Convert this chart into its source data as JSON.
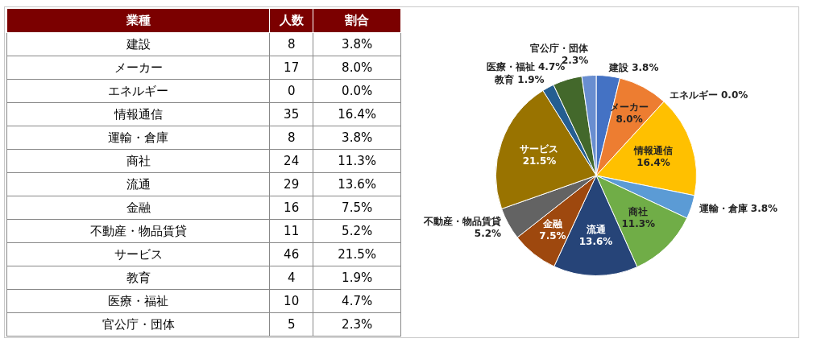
{
  "chart_data": [
    {
      "type": "other",
      "xlabel": "業種",
      "categories": [
        "建設",
        "メーカー",
        "エネルギー",
        "情報通信",
        "運輸・倉庫",
        "商社",
        "流通",
        "金融",
        "不動産・物品賃貸",
        "サービス",
        "教育",
        "医療・福祉",
        "官公庁・団体"
      ],
      "data_labels": true,
      "series": [
        {
          "name": "人数",
          "values": [
            8,
            17,
            0,
            35,
            8,
            24,
            29,
            16,
            11,
            46,
            4,
            10,
            5
          ]
        },
        {
          "name": "割合",
          "values": [
            3.8,
            8.0,
            0.0,
            16.4,
            3.8,
            11.3,
            13.6,
            7.5,
            5.2,
            21.5,
            1.9,
            4.7,
            2.3
          ],
          "value_labels": [
            "3.8%",
            "8.0%",
            "0.0%",
            "16.4%",
            "3.8%",
            "11.3%",
            "13.6%",
            "7.5%",
            "5.2%",
            "21.5%",
            "1.9%",
            "4.7%",
            "2.3%"
          ]
        }
      ]
    },
    {
      "type": "pie",
      "categories": [
        "建設",
        "メーカー",
        "エネルギー",
        "情報通信",
        "運輸・倉庫",
        "商社",
        "流通",
        "金融",
        "不動産・物品賃貸",
        "サービス",
        "教育",
        "医療・福祉",
        "官公庁・団体"
      ],
      "values": [
        3.8,
        8.0,
        0.0,
        16.4,
        3.8,
        11.3,
        13.6,
        7.5,
        5.2,
        21.5,
        1.9,
        4.7,
        2.3
      ],
      "value_labels": [
        "3.8%",
        "8.0%",
        "0.0%",
        "16.4%",
        "3.8%",
        "11.3%",
        "13.6%",
        "7.5%",
        "5.2%",
        "21.5%",
        "1.9%",
        "4.7%",
        "2.3%"
      ],
      "colors": [
        "#4472c4",
        "#ed7d31",
        "#a5a5a5",
        "#ffc000",
        "#5b9bd5",
        "#70ad47",
        "#264478",
        "#9e480e",
        "#636363",
        "#997300",
        "#255e91",
        "#43682b",
        "#698ed0"
      ]
    }
  ]
}
